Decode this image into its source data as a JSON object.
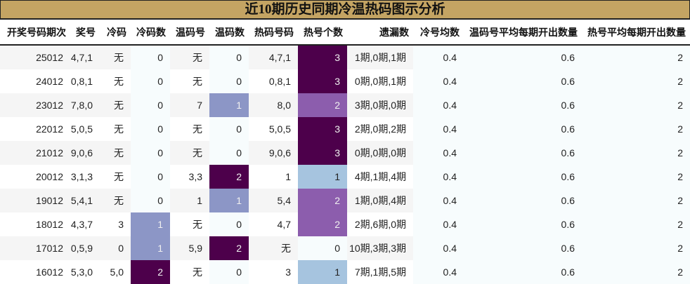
{
  "title": "近10期历史同期冷温热码图示分析",
  "columns": [
    "开奖号码期次",
    "奖号",
    "冷码",
    "冷码数",
    "温码号",
    "温码数",
    "热码号码",
    "热号个数",
    "遗漏数",
    "冷号均数",
    "温码号平均每期开出数量",
    "热号平均每期开出数量"
  ],
  "color_scales": {
    "cold_count": {
      "0": "#f7fcfd",
      "1": "#8c96c6",
      "2": "#4d004b"
    },
    "warm_count": {
      "0": "#f7fcfd",
      "1": "#8c96c6",
      "2": "#4d004b"
    },
    "hot_count": {
      "0": "#f7fcfd",
      "1": "#a6c4df",
      "2": "#8c5dad",
      "3": "#4d004b"
    },
    "pale": "#f7fcfd",
    "light_text": "#f0f0f0"
  },
  "rows": [
    [
      "25012",
      "4,7,1",
      "无",
      "0",
      "无",
      "0",
      "4,7,1",
      "3",
      "1期,0期,1期",
      "0.4",
      "0.6",
      "2"
    ],
    [
      "24012",
      "0,8,1",
      "无",
      "0",
      "无",
      "0",
      "0,8,1",
      "3",
      "0期,0期,1期",
      "0.4",
      "0.6",
      "2"
    ],
    [
      "23012",
      "7,8,0",
      "无",
      "0",
      "7",
      "1",
      "8,0",
      "2",
      "3期,0期,0期",
      "0.4",
      "0.6",
      "2"
    ],
    [
      "22012",
      "5,0,5",
      "无",
      "0",
      "无",
      "0",
      "5,0,5",
      "3",
      "2期,0期,2期",
      "0.4",
      "0.6",
      "2"
    ],
    [
      "21012",
      "9,0,6",
      "无",
      "0",
      "无",
      "0",
      "9,0,6",
      "3",
      "0期,0期,0期",
      "0.4",
      "0.6",
      "2"
    ],
    [
      "20012",
      "3,1,3",
      "无",
      "0",
      "3,3",
      "2",
      "1",
      "1",
      "4期,1期,4期",
      "0.4",
      "0.6",
      "2"
    ],
    [
      "19012",
      "5,4,1",
      "无",
      "0",
      "1",
      "1",
      "5,4",
      "2",
      "1期,0期,4期",
      "0.4",
      "0.6",
      "2"
    ],
    [
      "18012",
      "4,3,7",
      "3",
      "1",
      "无",
      "0",
      "4,7",
      "2",
      "2期,6期,0期",
      "0.4",
      "0.6",
      "2"
    ],
    [
      "17012",
      "0,5,9",
      "0",
      "1",
      "5,9",
      "2",
      "无",
      "0",
      "10期,3期,3期",
      "0.4",
      "0.6",
      "2"
    ],
    [
      "16012",
      "5,3,0",
      "5,0",
      "2",
      "无",
      "0",
      "3",
      "1",
      "7期,1期,5期",
      "0.4",
      "0.6",
      "2"
    ]
  ]
}
